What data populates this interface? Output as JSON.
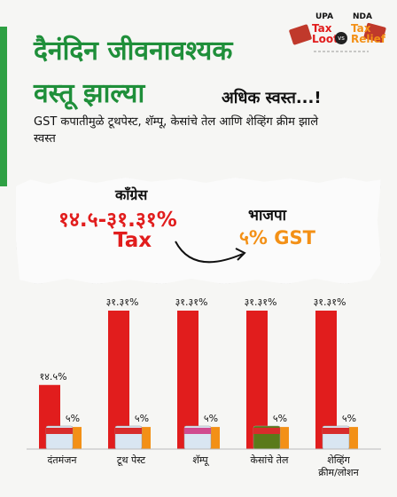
{
  "logo": {
    "upa": "UPA",
    "upa_bold": "Tax Loot",
    "vs": "vs",
    "nda": "NDA",
    "nda_bold": "Tax Relief"
  },
  "headline": {
    "line1": "दैनंदिन जीवनावश्यक",
    "line2": "वस्तू झाल्या",
    "line2_small": "अधिक स्वस्त...!"
  },
  "subtitle": "GST कपातीमुळे टूथपेस्ट, शॅम्पू, केसांचे तेल आणि शेव्हिंग क्रीम झाले स्वस्त",
  "comparison": {
    "congress_label": "काँग्रेस",
    "congress_range": "१४.५-३१.३१%",
    "congress_tax": "Tax",
    "bjp_label": "भाजपा",
    "bjp_value": "५% GST"
  },
  "colors": {
    "accent": "#2ea043",
    "red": "#e11d1d",
    "orange": "#f39016"
  },
  "chart_data": {
    "type": "bar",
    "categories": [
      "दंतमंजन",
      "टूथ पेस्ट",
      "शॅम्पू",
      "केसांचे तेल",
      "शेव्हिंग क्रीम/लोशन"
    ],
    "series": [
      {
        "values": [
          14.5,
          31.31,
          31.31,
          31.31,
          31.31
        ],
        "labels": [
          "१४.५%",
          "३१.३१%",
          "३१.३१%",
          "३१.३१%",
          "३१.३१%"
        ],
        "color": "#e11d1d"
      },
      {
        "values": [
          5,
          5,
          5,
          5,
          5
        ],
        "labels": [
          "५%",
          "५%",
          "५%",
          "५%",
          "५%"
        ],
        "color": "#f39016"
      }
    ],
    "ylim": [
      0,
      31.31
    ],
    "grid": false
  }
}
